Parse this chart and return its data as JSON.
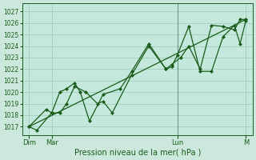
{
  "title": "Pression niveau de la mer( hPa )",
  "bg_color": "#cce8dc",
  "plot_bg_color": "#c5e8dc",
  "line_color": "#1a5c1a",
  "grid_color": "#9fcfbe",
  "ylim": [
    1016.3,
    1027.7
  ],
  "yticks": [
    1017,
    1018,
    1019,
    1020,
    1021,
    1022,
    1023,
    1024,
    1025,
    1026,
    1027
  ],
  "xlim": [
    -0.1,
    20.1
  ],
  "xtick_positions": [
    0.5,
    2.5,
    13.5,
    19.5
  ],
  "xtick_labels": [
    "Dim",
    "Mar",
    "Lun",
    "M"
  ],
  "vline_x": 13.5,
  "series1_x": [
    0.5,
    1.2,
    2.5,
    3.2,
    3.8,
    4.5,
    5.5,
    6.5,
    7.0,
    7.8,
    9.5,
    11.0,
    12.5,
    13.0,
    13.5,
    14.5,
    15.5,
    16.5,
    17.5,
    18.5,
    19.0,
    19.5
  ],
  "series1_y": [
    1017.0,
    1016.7,
    1018.2,
    1018.2,
    1019.0,
    1020.5,
    1020.0,
    1019.0,
    1019.2,
    1018.2,
    1021.5,
    1024.0,
    1022.0,
    1022.2,
    1023.2,
    1025.7,
    1021.8,
    1021.8,
    1024.8,
    1025.8,
    1024.2,
    1026.2
  ],
  "series2_x": [
    0.5,
    2.0,
    2.5,
    3.2,
    3.8,
    4.5,
    5.0,
    5.8,
    7.0,
    8.5,
    9.5,
    11.0,
    12.5,
    13.0,
    13.8,
    14.5,
    15.5,
    16.5,
    17.5,
    18.5,
    19.0,
    19.5
  ],
  "series2_y": [
    1017.0,
    1018.5,
    1018.2,
    1020.0,
    1020.3,
    1020.8,
    1020.0,
    1017.5,
    1019.8,
    1020.3,
    1021.8,
    1024.2,
    1022.0,
    1022.4,
    1023.0,
    1024.0,
    1022.0,
    1025.8,
    1025.7,
    1025.4,
    1026.3,
    1026.3
  ],
  "trend_x": [
    0.5,
    19.5
  ],
  "trend_y": [
    1017.0,
    1026.3
  ],
  "marker_size": 2.5,
  "linewidth": 0.9
}
